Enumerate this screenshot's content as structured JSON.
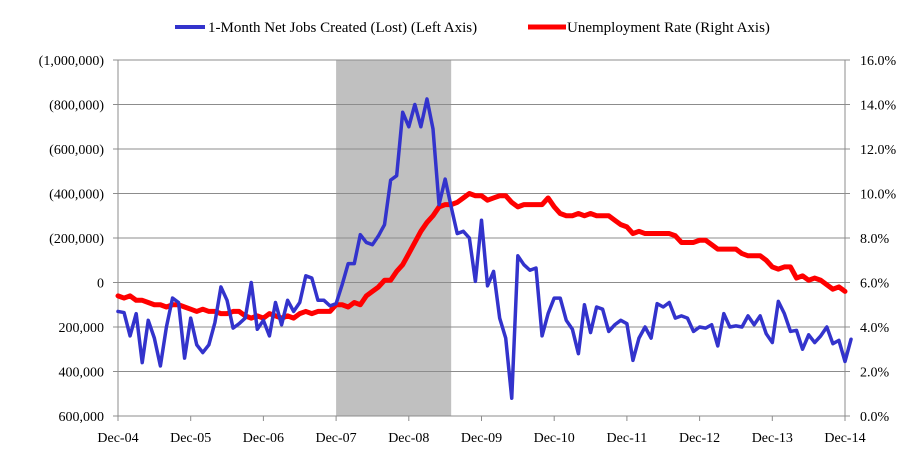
{
  "chart_data": {
    "type": "line",
    "legend": {
      "position": "top",
      "items": [
        {
          "label": "1-Month Net Jobs Created (Lost) (Left Axis)",
          "color": "#3333CC"
        },
        {
          "label": "Unemployment Rate (Right Axis)",
          "color": "#FF0000"
        }
      ]
    },
    "shaded_recession": {
      "start": 2007.917,
      "end": 2009.5,
      "color": "#C0C0C0"
    },
    "x_axis": {
      "range": [
        2004.917,
        2014.917
      ],
      "ticks": [
        {
          "value": 2004.917,
          "label": "Dec-04"
        },
        {
          "value": 2005.917,
          "label": "Dec-05"
        },
        {
          "value": 2006.917,
          "label": "Dec-06"
        },
        {
          "value": 2007.917,
          "label": "Dec-07"
        },
        {
          "value": 2008.917,
          "label": "Dec-08"
        },
        {
          "value": 2009.917,
          "label": "Dec-09"
        },
        {
          "value": 2010.917,
          "label": "Dec-10"
        },
        {
          "value": 2011.917,
          "label": "Dec-11"
        },
        {
          "value": 2012.917,
          "label": "Dec-12"
        },
        {
          "value": 2013.917,
          "label": "Dec-13"
        },
        {
          "value": 2014.917,
          "label": "Dec-14"
        }
      ]
    },
    "left_axis": {
      "range": [
        -600000,
        1000000
      ],
      "inverted": true,
      "ticks": [
        {
          "value": 1000000,
          "label": "(1,000,000)"
        },
        {
          "value": 800000,
          "label": "(800,000)"
        },
        {
          "value": 600000,
          "label": "(600,000)"
        },
        {
          "value": 400000,
          "label": "(400,000)"
        },
        {
          "value": 200000,
          "label": "(200,000)"
        },
        {
          "value": 0,
          "label": "0"
        },
        {
          "value": -200000,
          "label": "200,000"
        },
        {
          "value": -400000,
          "label": "400,000"
        },
        {
          "value": -600000,
          "label": "600,000"
        }
      ]
    },
    "right_axis": {
      "range": [
        0,
        16
      ],
      "ticks": [
        {
          "value": 16,
          "label": "16.0%"
        },
        {
          "value": 14,
          "label": "14.0%"
        },
        {
          "value": 12,
          "label": "12.0%"
        },
        {
          "value": 10,
          "label": "10.0%"
        },
        {
          "value": 8,
          "label": "8.0%"
        },
        {
          "value": 6,
          "label": "6.0%"
        },
        {
          "value": 4,
          "label": "4.0%"
        },
        {
          "value": 2,
          "label": "2.0%"
        },
        {
          "value": 0,
          "label": "0.0%"
        }
      ]
    },
    "grid": {
      "horizontal": true,
      "vertical": false
    },
    "series": [
      {
        "name": "1-Month Net Jobs Created (Lost) (Left Axis)",
        "axis": "left",
        "color": "#3333CC",
        "points": [
          [
            2004.917,
            -130000
          ],
          [
            2005.0,
            -135000
          ],
          [
            2005.083,
            -240000
          ],
          [
            2005.167,
            -140000
          ],
          [
            2005.25,
            -360000
          ],
          [
            2005.333,
            -170000
          ],
          [
            2005.417,
            -250000
          ],
          [
            2005.5,
            -375000
          ],
          [
            2005.583,
            -200000
          ],
          [
            2005.667,
            -70000
          ],
          [
            2005.75,
            -90000
          ],
          [
            2005.833,
            -340000
          ],
          [
            2005.917,
            -160000
          ],
          [
            2006.0,
            -280000
          ],
          [
            2006.083,
            -315000
          ],
          [
            2006.167,
            -280000
          ],
          [
            2006.25,
            -180000
          ],
          [
            2006.333,
            -20000
          ],
          [
            2006.417,
            -80000
          ],
          [
            2006.5,
            -205000
          ],
          [
            2006.583,
            -185000
          ],
          [
            2006.667,
            -160000
          ],
          [
            2006.75,
            0
          ],
          [
            2006.833,
            -210000
          ],
          [
            2006.917,
            -170000
          ],
          [
            2007.0,
            -240000
          ],
          [
            2007.083,
            -90000
          ],
          [
            2007.167,
            -190000
          ],
          [
            2007.25,
            -80000
          ],
          [
            2007.333,
            -130000
          ],
          [
            2007.417,
            -90000
          ],
          [
            2007.5,
            30000
          ],
          [
            2007.583,
            20000
          ],
          [
            2007.667,
            -80000
          ],
          [
            2007.75,
            -80000
          ],
          [
            2007.833,
            -105000
          ],
          [
            2007.917,
            -95000
          ],
          [
            2008.0,
            -10000
          ],
          [
            2008.083,
            85000
          ],
          [
            2008.167,
            85000
          ],
          [
            2008.25,
            215000
          ],
          [
            2008.333,
            180000
          ],
          [
            2008.417,
            170000
          ],
          [
            2008.5,
            210000
          ],
          [
            2008.583,
            260000
          ],
          [
            2008.667,
            460000
          ],
          [
            2008.75,
            480000
          ],
          [
            2008.833,
            765000
          ],
          [
            2008.917,
            700000
          ],
          [
            2009.0,
            800000
          ],
          [
            2009.083,
            700000
          ],
          [
            2009.167,
            825000
          ],
          [
            2009.25,
            690000
          ],
          [
            2009.333,
            350000
          ],
          [
            2009.417,
            465000
          ],
          [
            2009.5,
            340000
          ],
          [
            2009.583,
            220000
          ],
          [
            2009.667,
            230000
          ],
          [
            2009.75,
            200000
          ],
          [
            2009.833,
            5000
          ],
          [
            2009.917,
            280000
          ],
          [
            2010.0,
            -15000
          ],
          [
            2010.083,
            50000
          ],
          [
            2010.167,
            -160000
          ],
          [
            2010.25,
            -250000
          ],
          [
            2010.333,
            -520000
          ],
          [
            2010.417,
            120000
          ],
          [
            2010.5,
            80000
          ],
          [
            2010.583,
            55000
          ],
          [
            2010.667,
            65000
          ],
          [
            2010.75,
            -240000
          ],
          [
            2010.833,
            -140000
          ],
          [
            2010.917,
            -70000
          ],
          [
            2011.0,
            -70000
          ],
          [
            2011.083,
            -170000
          ],
          [
            2011.167,
            -210000
          ],
          [
            2011.25,
            -320000
          ],
          [
            2011.333,
            -100000
          ],
          [
            2011.417,
            -225000
          ],
          [
            2011.5,
            -110000
          ],
          [
            2011.583,
            -120000
          ],
          [
            2011.667,
            -220000
          ],
          [
            2011.75,
            -190000
          ],
          [
            2011.833,
            -170000
          ],
          [
            2011.917,
            -185000
          ],
          [
            2012.0,
            -350000
          ],
          [
            2012.083,
            -250000
          ],
          [
            2012.167,
            -200000
          ],
          [
            2012.25,
            -250000
          ],
          [
            2012.333,
            -95000
          ],
          [
            2012.417,
            -110000
          ],
          [
            2012.5,
            -90000
          ],
          [
            2012.583,
            -160000
          ],
          [
            2012.667,
            -150000
          ],
          [
            2012.75,
            -160000
          ],
          [
            2012.833,
            -220000
          ],
          [
            2012.917,
            -200000
          ],
          [
            2013.0,
            -205000
          ],
          [
            2013.083,
            -190000
          ],
          [
            2013.167,
            -285000
          ],
          [
            2013.25,
            -140000
          ],
          [
            2013.333,
            -200000
          ],
          [
            2013.417,
            -195000
          ],
          [
            2013.5,
            -200000
          ],
          [
            2013.583,
            -150000
          ],
          [
            2013.667,
            -190000
          ],
          [
            2013.75,
            -150000
          ],
          [
            2013.833,
            -230000
          ],
          [
            2013.917,
            -270000
          ],
          [
            2014.0,
            -85000
          ],
          [
            2014.083,
            -140000
          ],
          [
            2014.167,
            -220000
          ],
          [
            2014.25,
            -215000
          ],
          [
            2014.333,
            -300000
          ],
          [
            2014.417,
            -235000
          ],
          [
            2014.5,
            -270000
          ],
          [
            2014.583,
            -240000
          ],
          [
            2014.667,
            -200000
          ],
          [
            2014.75,
            -275000
          ],
          [
            2014.833,
            -260000
          ],
          [
            2014.917,
            -355000
          ],
          [
            2015.0,
            -255000
          ]
        ]
      },
      {
        "name": "Unemployment Rate (Right Axis)",
        "axis": "right",
        "color": "#FF0000",
        "points": [
          [
            2004.917,
            5.4
          ],
          [
            2005.0,
            5.3
          ],
          [
            2005.083,
            5.4
          ],
          [
            2005.167,
            5.2
          ],
          [
            2005.25,
            5.2
          ],
          [
            2005.333,
            5.1
          ],
          [
            2005.417,
            5.0
          ],
          [
            2005.5,
            5.0
          ],
          [
            2005.583,
            4.9
          ],
          [
            2005.667,
            5.0
          ],
          [
            2005.75,
            5.0
          ],
          [
            2005.833,
            4.9
          ],
          [
            2005.917,
            4.8
          ],
          [
            2006.0,
            4.7
          ],
          [
            2006.083,
            4.8
          ],
          [
            2006.167,
            4.7
          ],
          [
            2006.25,
            4.7
          ],
          [
            2006.333,
            4.6
          ],
          [
            2006.417,
            4.6
          ],
          [
            2006.5,
            4.7
          ],
          [
            2006.583,
            4.7
          ],
          [
            2006.667,
            4.5
          ],
          [
            2006.75,
            4.4
          ],
          [
            2006.833,
            4.5
          ],
          [
            2006.917,
            4.4
          ],
          [
            2007.0,
            4.6
          ],
          [
            2007.083,
            4.5
          ],
          [
            2007.167,
            4.4
          ],
          [
            2007.25,
            4.5
          ],
          [
            2007.333,
            4.4
          ],
          [
            2007.417,
            4.6
          ],
          [
            2007.5,
            4.7
          ],
          [
            2007.583,
            4.6
          ],
          [
            2007.667,
            4.7
          ],
          [
            2007.75,
            4.7
          ],
          [
            2007.833,
            4.7
          ],
          [
            2007.917,
            5.0
          ],
          [
            2008.0,
            5.0
          ],
          [
            2008.083,
            4.9
          ],
          [
            2008.167,
            5.1
          ],
          [
            2008.25,
            5.0
          ],
          [
            2008.333,
            5.4
          ],
          [
            2008.417,
            5.6
          ],
          [
            2008.5,
            5.8
          ],
          [
            2008.583,
            6.1
          ],
          [
            2008.667,
            6.1
          ],
          [
            2008.75,
            6.5
          ],
          [
            2008.833,
            6.8
          ],
          [
            2008.917,
            7.3
          ],
          [
            2009.0,
            7.8
          ],
          [
            2009.083,
            8.3
          ],
          [
            2009.167,
            8.7
          ],
          [
            2009.25,
            9.0
          ],
          [
            2009.333,
            9.4
          ],
          [
            2009.417,
            9.5
          ],
          [
            2009.5,
            9.5
          ],
          [
            2009.583,
            9.6
          ],
          [
            2009.667,
            9.8
          ],
          [
            2009.75,
            10.0
          ],
          [
            2009.833,
            9.9
          ],
          [
            2009.917,
            9.9
          ],
          [
            2010.0,
            9.7
          ],
          [
            2010.083,
            9.8
          ],
          [
            2010.167,
            9.9
          ],
          [
            2010.25,
            9.9
          ],
          [
            2010.333,
            9.6
          ],
          [
            2010.417,
            9.4
          ],
          [
            2010.5,
            9.5
          ],
          [
            2010.583,
            9.5
          ],
          [
            2010.667,
            9.5
          ],
          [
            2010.75,
            9.5
          ],
          [
            2010.833,
            9.8
          ],
          [
            2010.917,
            9.4
          ],
          [
            2011.0,
            9.1
          ],
          [
            2011.083,
            9.0
          ],
          [
            2011.167,
            9.0
          ],
          [
            2011.25,
            9.1
          ],
          [
            2011.333,
            9.0
          ],
          [
            2011.417,
            9.1
          ],
          [
            2011.5,
            9.0
          ],
          [
            2011.583,
            9.0
          ],
          [
            2011.667,
            9.0
          ],
          [
            2011.75,
            8.8
          ],
          [
            2011.833,
            8.6
          ],
          [
            2011.917,
            8.5
          ],
          [
            2012.0,
            8.2
          ],
          [
            2012.083,
            8.3
          ],
          [
            2012.167,
            8.2
          ],
          [
            2012.25,
            8.2
          ],
          [
            2012.333,
            8.2
          ],
          [
            2012.417,
            8.2
          ],
          [
            2012.5,
            8.2
          ],
          [
            2012.583,
            8.1
          ],
          [
            2012.667,
            7.8
          ],
          [
            2012.75,
            7.8
          ],
          [
            2012.833,
            7.8
          ],
          [
            2012.917,
            7.9
          ],
          [
            2013.0,
            7.9
          ],
          [
            2013.083,
            7.7
          ],
          [
            2013.167,
            7.5
          ],
          [
            2013.25,
            7.5
          ],
          [
            2013.333,
            7.5
          ],
          [
            2013.417,
            7.5
          ],
          [
            2013.5,
            7.3
          ],
          [
            2013.583,
            7.2
          ],
          [
            2013.667,
            7.2
          ],
          [
            2013.75,
            7.2
          ],
          [
            2013.833,
            7.0
          ],
          [
            2013.917,
            6.7
          ],
          [
            2014.0,
            6.6
          ],
          [
            2014.083,
            6.7
          ],
          [
            2014.167,
            6.7
          ],
          [
            2014.25,
            6.2
          ],
          [
            2014.333,
            6.3
          ],
          [
            2014.417,
            6.1
          ],
          [
            2014.5,
            6.2
          ],
          [
            2014.583,
            6.1
          ],
          [
            2014.667,
            5.9
          ],
          [
            2014.75,
            5.7
          ],
          [
            2014.833,
            5.8
          ],
          [
            2014.917,
            5.6
          ]
        ]
      }
    ]
  }
}
